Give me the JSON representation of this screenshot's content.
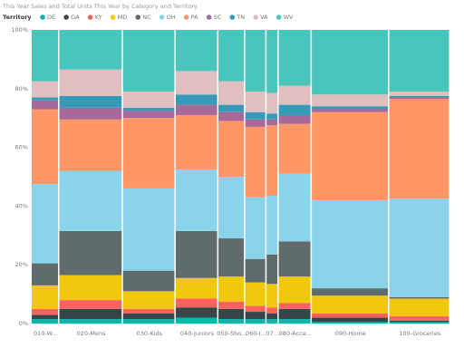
{
  "chart_data": {
    "type": "marimekko",
    "title": "This Year Sales and Total Units This Year by Category and Territory",
    "legend_title": "Territory",
    "categories": [
      "010-W...",
      "020-Mens",
      "030-Kids",
      "040-Juniors",
      "050-Sho...",
      "060-I...",
      "07...",
      "080-Acce...",
      "090-Home",
      "100-Groceries"
    ],
    "widths": [
      6.6,
      15.2,
      12.6,
      10.2,
      6.4,
      5.1,
      2.9,
      7.9,
      18.5,
      14.6
    ],
    "series": [
      {
        "name": "DE",
        "color": "#01B8AA",
        "values": [
          1.5,
          1.5,
          1.5,
          2,
          1.5,
          1.5,
          1.5,
          1.5,
          0.5,
          0.5
        ]
      },
      {
        "name": "GA",
        "color": "#374649",
        "values": [
          1.5,
          3.5,
          2,
          3.5,
          3.5,
          2.5,
          2,
          3.5,
          1.5,
          0.5
        ]
      },
      {
        "name": "KY",
        "color": "#FD625E",
        "values": [
          2,
          3,
          1.5,
          3,
          2.5,
          2,
          2,
          2,
          1.5,
          1.5
        ]
      },
      {
        "name": "MD",
        "color": "#F2C80F",
        "values": [
          8,
          8.5,
          6,
          7,
          8.5,
          8,
          8,
          9,
          6,
          6
        ]
      },
      {
        "name": "NC",
        "color": "#5F6B6D",
        "values": [
          7.5,
          15,
          7,
          16,
          13,
          8,
          10,
          12,
          2.5,
          0.5
        ]
      },
      {
        "name": "OH",
        "color": "#8AD4EB",
        "values": [
          27,
          20.5,
          28,
          21,
          21,
          21,
          20,
          23,
          30,
          33.5
        ]
      },
      {
        "name": "PA",
        "color": "#FE9666",
        "values": [
          25.5,
          17.5,
          24,
          18.5,
          19,
          24,
          24,
          17,
          30,
          34
        ]
      },
      {
        "name": "SC",
        "color": "#A66999",
        "values": [
          3,
          4,
          2.5,
          3.5,
          3,
          2.5,
          2,
          3,
          1,
          0.5
        ]
      },
      {
        "name": "TN",
        "color": "#3599B8",
        "values": [
          1,
          4,
          1,
          3.5,
          2.5,
          2.5,
          2,
          3.5,
          1,
          0.5
        ]
      },
      {
        "name": "VA",
        "color": "#DFBFBF",
        "values": [
          5.5,
          9,
          5.5,
          8,
          8,
          7,
          7,
          6.5,
          4,
          1.5
        ]
      },
      {
        "name": "WV",
        "color": "#4AC5BB",
        "values": [
          17.5,
          13.5,
          21,
          14,
          17.5,
          21,
          21.5,
          19,
          22,
          21
        ]
      }
    ],
    "ylim": [
      0,
      100
    ],
    "yticks": [
      {
        "value": 0,
        "label": "0%"
      },
      {
        "value": 20,
        "label": "20%"
      },
      {
        "value": 40,
        "label": "40%"
      },
      {
        "value": 60,
        "label": "60%"
      },
      {
        "value": 80,
        "label": "80%"
      },
      {
        "value": 100,
        "label": "100%"
      }
    ],
    "grid": false
  }
}
